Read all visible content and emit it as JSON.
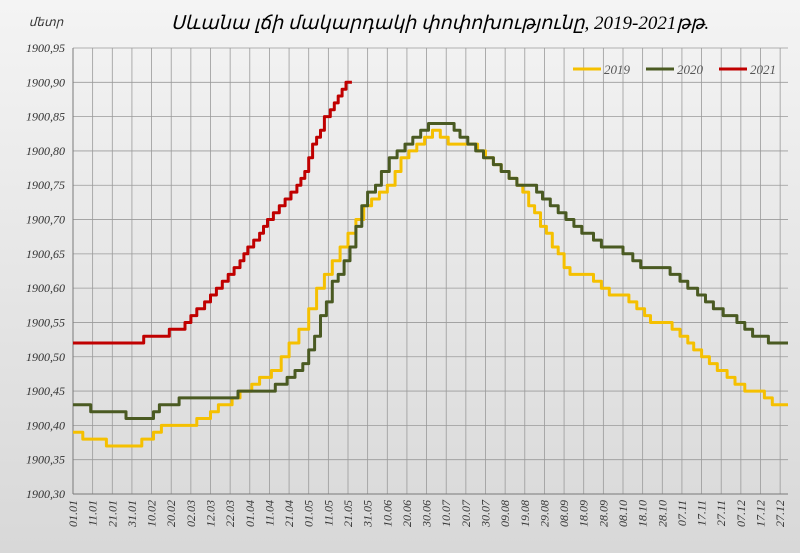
{
  "chart_data": {
    "type": "line",
    "title": "Սևանա լճի մակարդակի փոփոխությունը, 2019-2021թթ.",
    "ylabel": "մետր",
    "xlabel": "",
    "ylim": [
      1900.3,
      1900.95
    ],
    "yticks": [
      "1900,30",
      "1900,35",
      "1900,40",
      "1900,45",
      "1900,50",
      "1900,55",
      "1900,60",
      "1900,65",
      "1900,70",
      "1900,75",
      "1900,80",
      "1900,85",
      "1900,90",
      "1900,95"
    ],
    "x_ticks": [
      "01.01",
      "11.01",
      "21.01",
      "31.01",
      "10.02",
      "20.02",
      "02.03",
      "12.03",
      "22.03",
      "01.04",
      "11.04",
      "21.04",
      "01.05",
      "11.05",
      "21.05",
      "31.05",
      "10.06",
      "20.06",
      "30.06",
      "10.07",
      "20.07",
      "30.07",
      "09.08",
      "19.08",
      "29.08",
      "08.09",
      "18.09",
      "28.09",
      "08.10",
      "18.10",
      "28.10",
      "07.11",
      "17.11",
      "27.11",
      "07.12",
      "17.12",
      "27.12"
    ],
    "x_unit": "day of year",
    "xlim": [
      1,
      365
    ],
    "grid": true,
    "legend_position": "top-right",
    "series": [
      {
        "name": "2019",
        "color": "#f5c000",
        "points": [
          [
            1,
            1900.39
          ],
          [
            6,
            1900.38
          ],
          [
            18,
            1900.37
          ],
          [
            36,
            1900.38
          ],
          [
            42,
            1900.39
          ],
          [
            46,
            1900.4
          ],
          [
            64,
            1900.41
          ],
          [
            71,
            1900.42
          ],
          [
            75,
            1900.43
          ],
          [
            82,
            1900.44
          ],
          [
            86,
            1900.45
          ],
          [
            92,
            1900.46
          ],
          [
            96,
            1900.47
          ],
          [
            102,
            1900.48
          ],
          [
            107,
            1900.5
          ],
          [
            111,
            1900.52
          ],
          [
            116,
            1900.54
          ],
          [
            121,
            1900.57
          ],
          [
            125,
            1900.6
          ],
          [
            129,
            1900.62
          ],
          [
            133,
            1900.64
          ],
          [
            137,
            1900.66
          ],
          [
            141,
            1900.68
          ],
          [
            145,
            1900.7
          ],
          [
            149,
            1900.72
          ],
          [
            153,
            1900.73
          ],
          [
            157,
            1900.74
          ],
          [
            161,
            1900.75
          ],
          [
            165,
            1900.77
          ],
          [
            168,
            1900.79
          ],
          [
            172,
            1900.8
          ],
          [
            176,
            1900.81
          ],
          [
            180,
            1900.82
          ],
          [
            184,
            1900.83
          ],
          [
            188,
            1900.82
          ],
          [
            192,
            1900.81
          ],
          [
            203,
            1900.81
          ],
          [
            207,
            1900.8
          ],
          [
            211,
            1900.79
          ],
          [
            215,
            1900.78
          ],
          [
            219,
            1900.77
          ],
          [
            223,
            1900.76
          ],
          [
            227,
            1900.75
          ],
          [
            230,
            1900.74
          ],
          [
            233,
            1900.72
          ],
          [
            236,
            1900.71
          ],
          [
            239,
            1900.69
          ],
          [
            242,
            1900.68
          ],
          [
            245,
            1900.66
          ],
          [
            248,
            1900.65
          ],
          [
            251,
            1900.63
          ],
          [
            254,
            1900.62
          ],
          [
            260,
            1900.62
          ],
          [
            266,
            1900.61
          ],
          [
            270,
            1900.6
          ],
          [
            274,
            1900.59
          ],
          [
            280,
            1900.59
          ],
          [
            284,
            1900.58
          ],
          [
            288,
            1900.57
          ],
          [
            292,
            1900.56
          ],
          [
            295,
            1900.55
          ],
          [
            302,
            1900.55
          ],
          [
            306,
            1900.54
          ],
          [
            310,
            1900.53
          ],
          [
            314,
            1900.52
          ],
          [
            317,
            1900.51
          ],
          [
            321,
            1900.5
          ],
          [
            325,
            1900.49
          ],
          [
            329,
            1900.48
          ],
          [
            334,
            1900.47
          ],
          [
            338,
            1900.46
          ],
          [
            343,
            1900.45
          ],
          [
            349,
            1900.45
          ],
          [
            353,
            1900.44
          ],
          [
            357,
            1900.43
          ],
          [
            365,
            1900.43
          ]
        ]
      },
      {
        "name": "2020",
        "color": "#4a5a22",
        "points": [
          [
            1,
            1900.43
          ],
          [
            10,
            1900.42
          ],
          [
            28,
            1900.41
          ],
          [
            42,
            1900.42
          ],
          [
            45,
            1900.43
          ],
          [
            55,
            1900.44
          ],
          [
            85,
            1900.45
          ],
          [
            104,
            1900.46
          ],
          [
            110,
            1900.47
          ],
          [
            114,
            1900.48
          ],
          [
            118,
            1900.49
          ],
          [
            121,
            1900.51
          ],
          [
            124,
            1900.53
          ],
          [
            127,
            1900.56
          ],
          [
            130,
            1900.58
          ],
          [
            133,
            1900.61
          ],
          [
            136,
            1900.62
          ],
          [
            139,
            1900.64
          ],
          [
            142,
            1900.66
          ],
          [
            145,
            1900.69
          ],
          [
            148,
            1900.72
          ],
          [
            151,
            1900.74
          ],
          [
            155,
            1900.75
          ],
          [
            158,
            1900.77
          ],
          [
            162,
            1900.79
          ],
          [
            166,
            1900.8
          ],
          [
            170,
            1900.81
          ],
          [
            174,
            1900.82
          ],
          [
            178,
            1900.83
          ],
          [
            182,
            1900.84
          ],
          [
            192,
            1900.84
          ],
          [
            195,
            1900.83
          ],
          [
            198,
            1900.82
          ],
          [
            202,
            1900.81
          ],
          [
            206,
            1900.8
          ],
          [
            210,
            1900.79
          ],
          [
            215,
            1900.78
          ],
          [
            219,
            1900.77
          ],
          [
            223,
            1900.76
          ],
          [
            227,
            1900.75
          ],
          [
            233,
            1900.75
          ],
          [
            237,
            1900.74
          ],
          [
            240,
            1900.73
          ],
          [
            244,
            1900.72
          ],
          [
            248,
            1900.71
          ],
          [
            252,
            1900.7
          ],
          [
            256,
            1900.69
          ],
          [
            260,
            1900.68
          ],
          [
            266,
            1900.67
          ],
          [
            270,
            1900.66
          ],
          [
            281,
            1900.65
          ],
          [
            286,
            1900.64
          ],
          [
            290,
            1900.63
          ],
          [
            305,
            1900.62
          ],
          [
            310,
            1900.61
          ],
          [
            314,
            1900.6
          ],
          [
            319,
            1900.59
          ],
          [
            323,
            1900.58
          ],
          [
            327,
            1900.57
          ],
          [
            332,
            1900.56
          ],
          [
            339,
            1900.55
          ],
          [
            343,
            1900.54
          ],
          [
            347,
            1900.53
          ],
          [
            355,
            1900.52
          ],
          [
            365,
            1900.52
          ]
        ]
      },
      {
        "name": "2021",
        "color": "#c00000",
        "points": [
          [
            1,
            1900.52
          ],
          [
            37,
            1900.53
          ],
          [
            50,
            1900.54
          ],
          [
            58,
            1900.55
          ],
          [
            61,
            1900.56
          ],
          [
            64,
            1900.57
          ],
          [
            68,
            1900.58
          ],
          [
            71,
            1900.59
          ],
          [
            74,
            1900.6
          ],
          [
            77,
            1900.61
          ],
          [
            80,
            1900.62
          ],
          [
            83,
            1900.63
          ],
          [
            86,
            1900.64
          ],
          [
            88,
            1900.65
          ],
          [
            90,
            1900.66
          ],
          [
            93,
            1900.67
          ],
          [
            96,
            1900.68
          ],
          [
            98,
            1900.69
          ],
          [
            100,
            1900.7
          ],
          [
            103,
            1900.71
          ],
          [
            106,
            1900.72
          ],
          [
            109,
            1900.73
          ],
          [
            112,
            1900.74
          ],
          [
            115,
            1900.75
          ],
          [
            117,
            1900.76
          ],
          [
            119,
            1900.77
          ],
          [
            121,
            1900.79
          ],
          [
            123,
            1900.81
          ],
          [
            125,
            1900.82
          ],
          [
            127,
            1900.83
          ],
          [
            129,
            1900.85
          ],
          [
            132,
            1900.86
          ],
          [
            134,
            1900.87
          ],
          [
            136,
            1900.88
          ],
          [
            138,
            1900.89
          ],
          [
            140,
            1900.9
          ],
          [
            143,
            1900.9
          ]
        ]
      }
    ]
  }
}
